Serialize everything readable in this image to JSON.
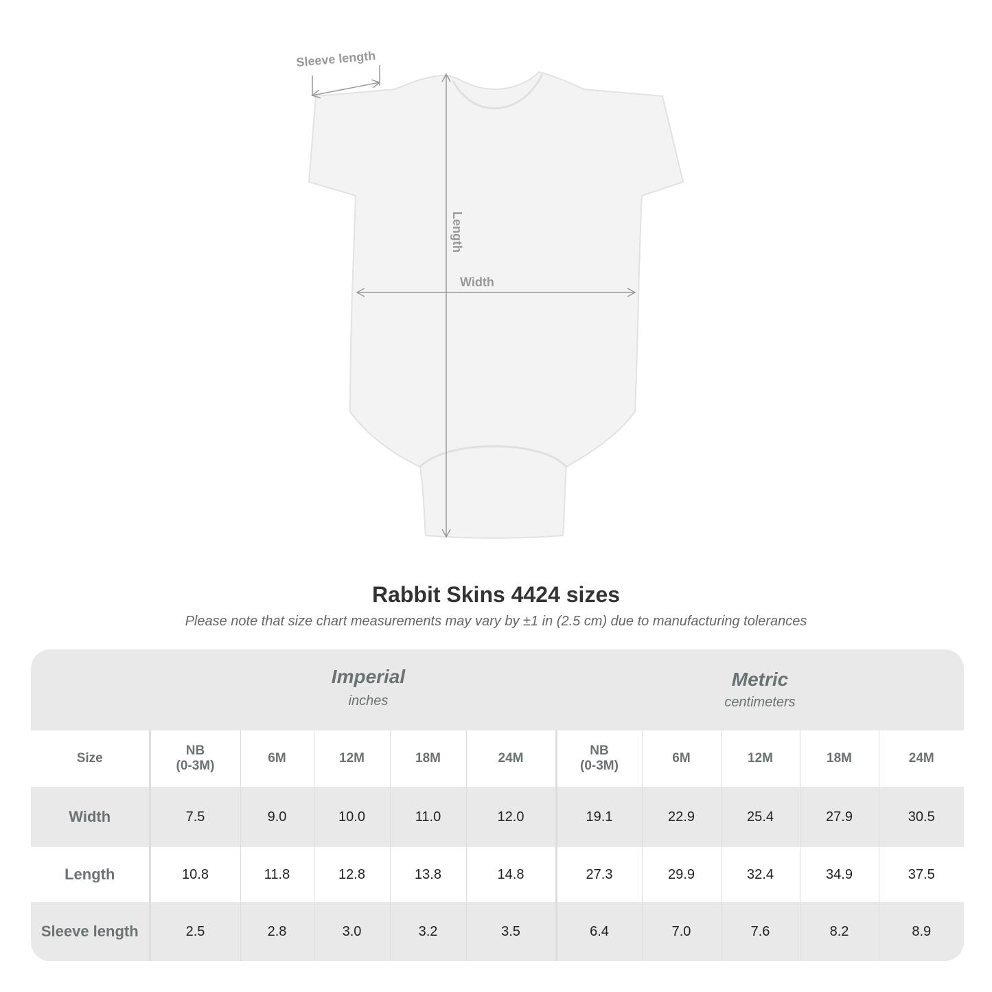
{
  "diagram": {
    "labels": {
      "sleeve_length": "Sleeve length",
      "length": "Length",
      "width": "Width"
    },
    "garment_color": "#f3f3f3",
    "measure_line_color": "#999999"
  },
  "title": "Rabbit Skins 4424 sizes",
  "subtitle": "Please note that size chart measurements may vary by ±1 in (2.5 cm) due to manufacturing tolerances",
  "table": {
    "imperial": {
      "title": "Imperial",
      "unit": "inches"
    },
    "metric": {
      "title": "Metric",
      "unit": "centimeters"
    },
    "size_label": "Size",
    "sizes_imperial": [
      [
        "NB",
        "(0-3M)"
      ],
      [
        "6M"
      ],
      [
        "12M"
      ],
      [
        "18M"
      ],
      [
        "24M"
      ]
    ],
    "sizes_metric": [
      [
        "NB",
        "(0-3M)"
      ],
      [
        "6M"
      ],
      [
        "12M"
      ],
      [
        "18M"
      ],
      [
        "24M"
      ]
    ],
    "rows": [
      {
        "label": "Width",
        "imperial": [
          "7.5",
          "9.0",
          "10.0",
          "11.0",
          "12.0"
        ],
        "metric": [
          "19.1",
          "22.9",
          "25.4",
          "27.9",
          "30.5"
        ]
      },
      {
        "label": "Length",
        "imperial": [
          "10.8",
          "11.8",
          "12.8",
          "13.8",
          "14.8"
        ],
        "metric": [
          "27.3",
          "29.9",
          "32.4",
          "34.9",
          "37.5"
        ]
      },
      {
        "label": "Sleeve length",
        "imperial": [
          "2.5",
          "2.8",
          "3.0",
          "3.2",
          "3.5"
        ],
        "metric": [
          "6.4",
          "7.0",
          "7.6",
          "8.2",
          "8.9"
        ]
      }
    ]
  }
}
